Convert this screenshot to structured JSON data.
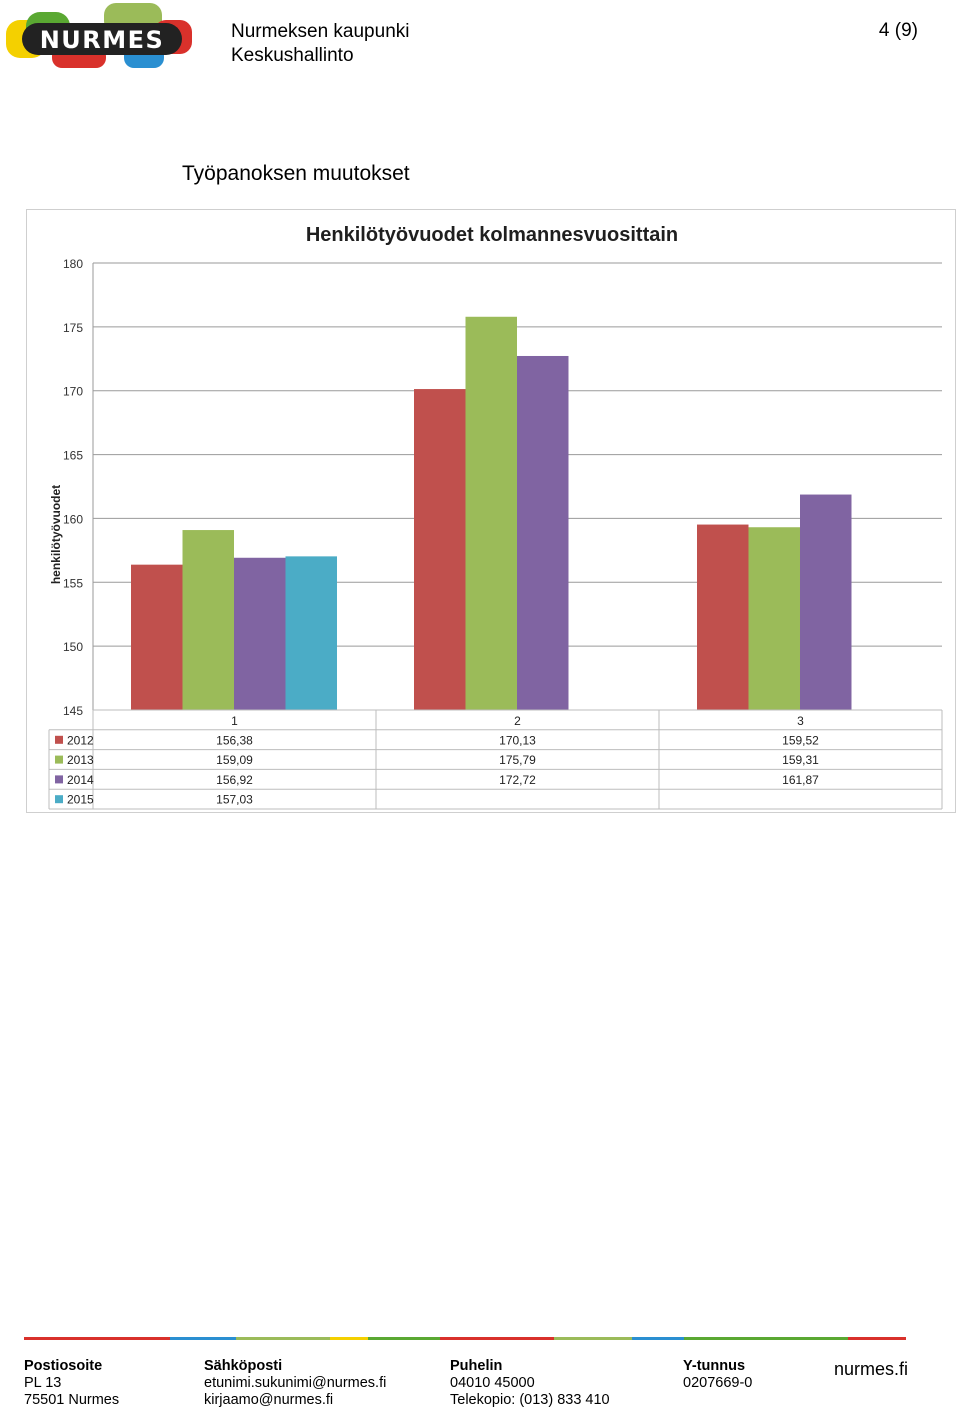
{
  "header": {
    "logo_text": "NURMES",
    "org_name": "Nurmeksen kaupunki",
    "org_unit": "Keskushallinto",
    "page_number": "4 (9)"
  },
  "section_heading": "Työpanoksen muutokset",
  "chart_data": {
    "type": "bar",
    "title": "Henkilötyövuodet kolmannesvuosittain",
    "ylabel": "henkilötyövuodet",
    "xlabel": "",
    "ylim": [
      145,
      180
    ],
    "yticks": [
      145,
      150,
      155,
      160,
      165,
      170,
      175,
      180
    ],
    "grid": true,
    "legend": "data-table",
    "categories": [
      "1",
      "2",
      "3"
    ],
    "series": [
      {
        "name": "2012",
        "color": "#c0504d",
        "values": [
          156.38,
          170.13,
          159.52
        ],
        "labels": [
          "156,38",
          "170,13",
          "159,52"
        ]
      },
      {
        "name": "2013",
        "color": "#9bbb59",
        "values": [
          159.09,
          175.79,
          159.31
        ],
        "labels": [
          "159,09",
          "175,79",
          "159,31"
        ]
      },
      {
        "name": "2014",
        "color": "#8064a2",
        "values": [
          156.92,
          172.72,
          161.87
        ],
        "labels": [
          "156,92",
          "172,72",
          "161,87"
        ]
      },
      {
        "name": "2015",
        "color": "#4bacc6",
        "values": [
          157.03,
          null,
          null
        ],
        "labels": [
          "157,03",
          "",
          ""
        ]
      }
    ]
  },
  "footer": {
    "colors": [
      "#d9312b",
      "#2a8fd1",
      "#9bbb59",
      "#f4d000",
      "#5aa832",
      "#d9312b",
      "#9bbb59",
      "#2a8fd1",
      "#5aa832",
      "#d9312b"
    ],
    "col1": {
      "heading": "Postiosoite",
      "line1": "PL 13",
      "line2": "75501 Nurmes"
    },
    "col2": {
      "heading": "Sähköposti",
      "line1": "etunimi.sukunimi@nurmes.fi",
      "line2": "kirjaamo@nurmes.fi"
    },
    "col3": {
      "heading": "Puhelin",
      "line1": "04010 45000",
      "line2": "Telekopio: (013) 833 410"
    },
    "col4": {
      "heading": "Y-tunnus",
      "line1": "0207669-0"
    },
    "website": "nurmes.fi"
  }
}
